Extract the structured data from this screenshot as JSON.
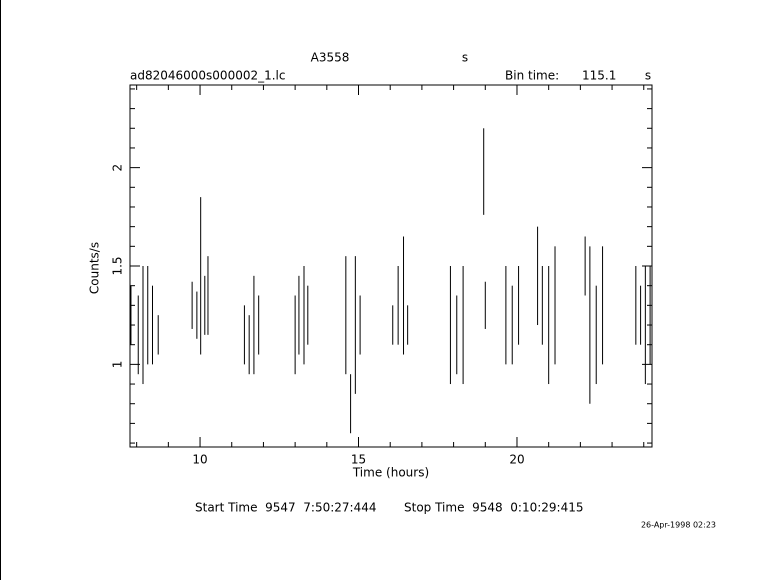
{
  "chart_data": {
    "type": "errorbar",
    "title": "A3558",
    "title_unit": "s",
    "subtitle": "ad82046000s000002_1.lc",
    "bin_time_label": "Bin time:",
    "bin_time": "115.1",
    "bin_time_unit": "s",
    "x_label": "Time (hours)",
    "y_label": "Counts/s",
    "start_time": "Start Time  9547  7:50:27:444",
    "stop_time": "Stop Time  9548  0:10:29:415",
    "date": "26-Apr-1998 02:23",
    "color": "#000000",
    "xlim": [
      7.79,
      24.26
    ],
    "ylim": [
      0.58,
      2.42
    ],
    "xticks": [
      10,
      15,
      20
    ],
    "yticks": [
      1,
      1.5,
      2
    ],
    "xminorticks": [
      8,
      9,
      11,
      12,
      13,
      14,
      16,
      17,
      18,
      19,
      21,
      22,
      23,
      24
    ],
    "yminorticks": [
      0.6,
      0.7,
      0.8,
      0.9,
      1.1,
      1.2,
      1.3,
      1.4,
      1.6,
      1.7,
      1.8,
      1.9,
      2.1,
      2.2,
      2.3,
      2.4
    ],
    "x": [
      7.82,
      8.05,
      8.2,
      8.35,
      8.5,
      8.68,
      9.75,
      9.9,
      10.02,
      10.15,
      10.25,
      11.4,
      11.55,
      11.7,
      11.85,
      13.0,
      13.12,
      13.28,
      13.4,
      14.6,
      14.75,
      14.9,
      15.05,
      16.08,
      16.25,
      16.42,
      16.55,
      17.9,
      18.1,
      18.3,
      18.95,
      19.0,
      19.65,
      19.85,
      20.05,
      20.65,
      20.8,
      21.0,
      21.2,
      22.15,
      22.3,
      22.5,
      22.7,
      23.75,
      23.9,
      24.05,
      24.2
    ],
    "values": [
      1.25,
      1.15,
      1.2,
      1.25,
      1.2,
      1.15,
      1.3,
      1.25,
      1.45,
      1.3,
      1.35,
      1.15,
      1.1,
      1.2,
      1.2,
      1.15,
      1.25,
      1.25,
      1.25,
      1.25,
      0.8,
      1.2,
      1.2,
      1.2,
      1.3,
      1.35,
      1.2,
      1.2,
      1.15,
      1.2,
      1.98,
      1.3,
      1.25,
      1.2,
      1.3,
      1.45,
      1.3,
      1.2,
      1.3,
      1.5,
      1.2,
      1.15,
      1.3,
      1.3,
      1.25,
      1.2,
      1.25
    ],
    "errors": [
      0.15,
      0.2,
      0.3,
      0.25,
      0.2,
      0.1,
      0.12,
      0.12,
      0.4,
      0.15,
      0.2,
      0.15,
      0.15,
      0.25,
      0.15,
      0.2,
      0.2,
      0.25,
      0.15,
      0.3,
      0.15,
      0.35,
      0.15,
      0.1,
      0.2,
      0.3,
      0.1,
      0.3,
      0.2,
      0.3,
      0.22,
      0.12,
      0.25,
      0.2,
      0.2,
      0.25,
      0.2,
      0.3,
      0.3,
      0.15,
      0.4,
      0.25,
      0.3,
      0.2,
      0.15,
      0.3,
      0.25
    ]
  }
}
